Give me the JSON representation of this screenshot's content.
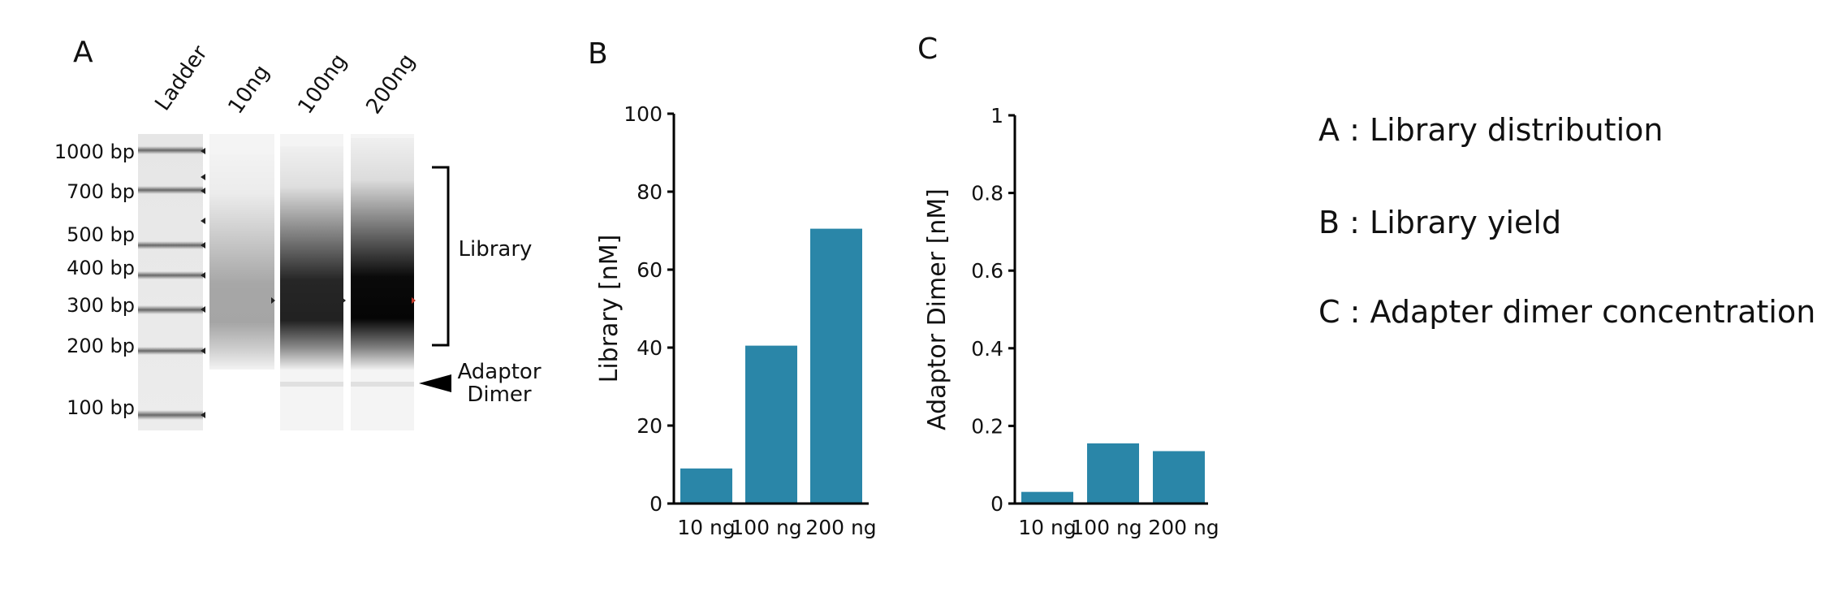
{
  "panels": {
    "a": {
      "letter": "A",
      "lanes": [
        "Ladder",
        "10ng",
        "100ng",
        "200ng"
      ],
      "ladder_sizes": [
        "1000 bp",
        "700 bp",
        "500 bp",
        "400 bp",
        "300 bp",
        "200 bp",
        "100 bp"
      ],
      "annotations": {
        "library": "Library",
        "adaptor_line1": "Adaptor",
        "adaptor_line2": "Dimer"
      },
      "lane_intensity": [
        0.33,
        0.88,
        1.0
      ]
    },
    "b": {
      "letter": "B"
    },
    "c": {
      "letter": "C"
    }
  },
  "captions": [
    "A : Library distribution",
    "B : Library yield",
    "C : Adapter dimer concentration"
  ],
  "colors": {
    "bar": "#2a86a8",
    "axis": "#000000"
  },
  "chart_data": [
    {
      "type": "bar",
      "categories": [
        "10 ng",
        "100 ng",
        "200 ng"
      ],
      "values": [
        9,
        40.5,
        70.5
      ],
      "ylabel": "Library [nM]",
      "ylim": [
        0,
        100
      ],
      "yticks": [
        "0",
        "20",
        "40",
        "60",
        "80",
        "100"
      ],
      "ytick_values": [
        0,
        20,
        40,
        60,
        80,
        100
      ]
    },
    {
      "type": "bar",
      "categories": [
        "10 ng",
        "100 ng",
        "200 ng"
      ],
      "values": [
        0.03,
        0.155,
        0.135
      ],
      "ylabel": "Adaptor Dimer [nM]",
      "ylim": [
        0,
        1
      ],
      "yticks": [
        "0",
        "0.2",
        "0.4",
        "0.6",
        "0.8",
        "1"
      ],
      "ytick_values": [
        0,
        0.2,
        0.4,
        0.6,
        0.8,
        1
      ]
    }
  ]
}
